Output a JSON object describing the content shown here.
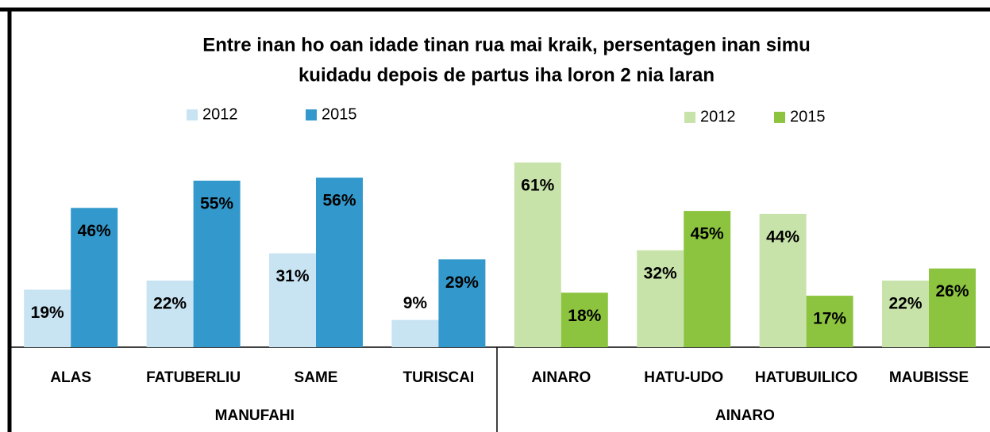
{
  "chart_data": {
    "type": "bar",
    "title": [
      "Entre inan ho oan idade tinan rua mai kraik, persentagen inan simu",
      "kuidadu depois de partus iha loron 2 nia laran"
    ],
    "groups": [
      {
        "name": "MANUFAHI",
        "categories": [
          "ALAS",
          "FATUBERLIU",
          "SAME",
          "TURISCAI"
        ],
        "series": [
          {
            "name": "2012",
            "color": "#c8e3f2",
            "values": [
              19,
              22,
              31,
              9
            ],
            "value_labels": [
              "19%",
              "22%",
              "31%",
              "9%"
            ]
          },
          {
            "name": "2015",
            "color": "#3399cc",
            "values": [
              46,
              55,
              56,
              29
            ],
            "value_labels": [
              "46%",
              "55%",
              "56%",
              "29%"
            ]
          }
        ]
      },
      {
        "name": "AINARO",
        "categories": [
          "AINARO",
          "HATU-UDO",
          "HATUBUILICO",
          "MAUBISSE"
        ],
        "series": [
          {
            "name": "2012",
            "color": "#c8e3aa",
            "values": [
              61,
              32,
              44,
              22
            ],
            "value_labels": [
              "61%",
              "32%",
              "44%",
              "22%"
            ]
          },
          {
            "name": "2015",
            "color": "#8cc43f",
            "values": [
              18,
              45,
              17,
              26
            ],
            "value_labels": [
              "18%",
              "45%",
              "17%",
              "26%"
            ]
          }
        ]
      }
    ]
  }
}
